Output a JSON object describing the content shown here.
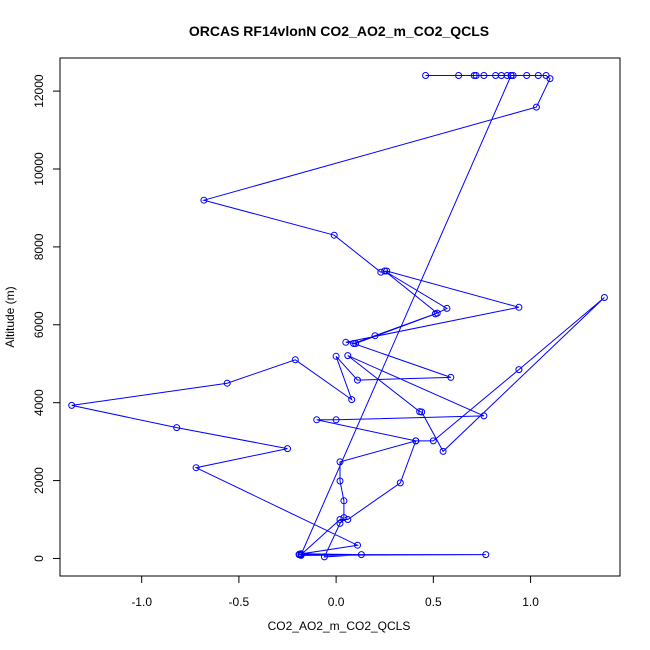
{
  "chart_data": {
    "type": "line",
    "title": "ORCAS RF14vlonN CO2_AO2_m_CO2_QCLS",
    "xlabel": "CO2_AO2_m_CO2_QCLS",
    "ylabel": "Altitude (m)",
    "xlim": [
      -1.42,
      1.46
    ],
    "ylim": [
      -450,
      12850
    ],
    "xticks": [
      -1.0,
      -0.5,
      0.0,
      0.5,
      1.0
    ],
    "xtick_labels": [
      "-1.0",
      "-0.5",
      "0.0",
      "0.5",
      "1.0"
    ],
    "yticks": [
      0,
      2000,
      4000,
      6000,
      8000,
      10000,
      12000
    ],
    "ytick_labels": [
      "0",
      "2000",
      "4000",
      "6000",
      "8000",
      "10000",
      "12000"
    ],
    "grid": false,
    "series": [
      {
        "color": "#0000ff",
        "marker": "open-circle",
        "points": [
          [
            0.46,
            12400
          ],
          [
            0.63,
            12400
          ],
          [
            0.71,
            12400
          ],
          [
            0.72,
            12400
          ],
          [
            0.76,
            12400
          ],
          [
            0.82,
            12400
          ],
          [
            0.85,
            12400
          ],
          [
            0.88,
            12400
          ],
          [
            0.9,
            12400
          ],
          [
            0.91,
            12400
          ],
          [
            0.98,
            12400
          ],
          [
            1.04,
            12400
          ],
          [
            1.08,
            12400
          ],
          [
            1.1,
            12320
          ],
          [
            1.03,
            11590
          ],
          [
            -0.68,
            9200
          ],
          [
            -0.01,
            8300
          ],
          [
            0.23,
            7350
          ],
          [
            0.26,
            7380
          ],
          [
            0.94,
            6450
          ],
          [
            0.05,
            5550
          ],
          [
            0.1,
            5520
          ],
          [
            0.51,
            6280
          ],
          [
            0.57,
            6420
          ],
          [
            0.25,
            7380
          ],
          [
            0.52,
            6300
          ],
          [
            0.2,
            5720
          ],
          [
            0.09,
            5520
          ],
          [
            0.59,
            4650
          ],
          [
            0.11,
            4580
          ],
          [
            0.0,
            5190
          ],
          [
            0.08,
            4080
          ],
          [
            -0.21,
            5100
          ],
          [
            -0.56,
            4500
          ],
          [
            -1.36,
            3930
          ],
          [
            -0.82,
            3360
          ],
          [
            -0.25,
            2820
          ],
          [
            -0.72,
            2330
          ],
          [
            0.11,
            340
          ],
          [
            -0.19,
            110
          ],
          [
            -0.18,
            80
          ],
          [
            0.77,
            100
          ],
          [
            -0.19,
            100
          ],
          [
            -0.18,
            120
          ],
          [
            0.13,
            100
          ],
          [
            -0.06,
            40
          ],
          [
            0.02,
            900
          ],
          [
            0.04,
            1050
          ],
          [
            0.04,
            1480
          ],
          [
            0.02,
            1990
          ],
          [
            0.02,
            2480
          ],
          [
            0.41,
            3020
          ],
          [
            0.5,
            3020
          ],
          [
            0.94,
            4850
          ],
          [
            1.38,
            6700
          ],
          [
            0.55,
            2750
          ],
          [
            0.44,
            3760
          ],
          [
            0.43,
            3770
          ],
          [
            0.06,
            5210
          ],
          [
            0.76,
            3660
          ],
          [
            0.0,
            3560
          ],
          [
            -0.1,
            3560
          ],
          [
            0.41,
            3020
          ],
          [
            0.33,
            1940
          ],
          [
            0.06,
            1000
          ],
          [
            0.02,
            1000
          ],
          [
            -0.18,
            100
          ],
          [
            -0.19,
            100
          ],
          [
            -0.18,
            100
          ],
          [
            0.9,
            12400
          ]
        ]
      }
    ]
  }
}
